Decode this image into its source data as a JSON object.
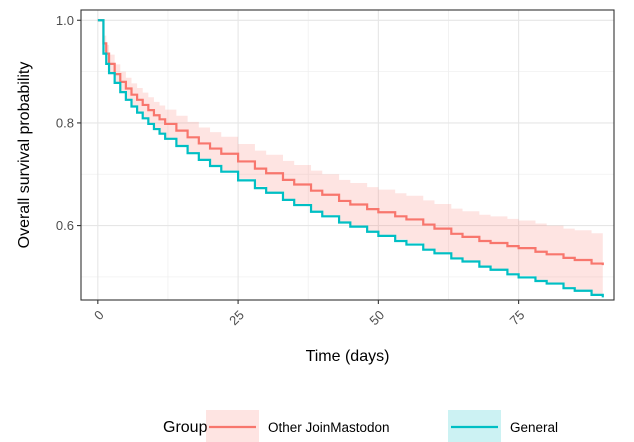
{
  "chart_data": {
    "type": "line",
    "subtype": "kaplan-meier step curve with confidence band",
    "xlabel": "Time (days)",
    "ylabel": "Overall survival probability",
    "xlim": [
      -3,
      92
    ],
    "ylim": [
      0.455,
      1.02
    ],
    "x_ticks": [
      0,
      25,
      50,
      75
    ],
    "x_tick_labels": [
      "0",
      "25",
      "50",
      "75"
    ],
    "y_ticks": [
      0.6,
      0.8,
      1.0
    ],
    "y_tick_labels": [
      "0.6",
      "0.8",
      "1.0"
    ],
    "grid": true,
    "legend": {
      "title": "Group",
      "position": "bottom"
    },
    "series": [
      {
        "name": "Other JoinMastodon",
        "color": "#F8766D",
        "band_color": "#F8766D",
        "x": [
          0,
          0.5,
          1,
          1.5,
          2,
          3,
          4,
          5,
          6,
          7,
          8,
          9,
          10,
          11,
          12,
          14,
          16,
          18,
          20,
          22,
          25,
          28,
          30,
          33,
          35,
          38,
          40,
          43,
          45,
          48,
          50,
          53,
          55,
          58,
          60,
          63,
          65,
          68,
          70,
          73,
          75,
          78,
          80,
          83,
          85,
          88,
          90
        ],
        "y": [
          1.0,
          1.0,
          0.955,
          0.935,
          0.915,
          0.895,
          0.88,
          0.867,
          0.855,
          0.845,
          0.835,
          0.825,
          0.815,
          0.807,
          0.798,
          0.785,
          0.772,
          0.76,
          0.75,
          0.74,
          0.725,
          0.711,
          0.702,
          0.689,
          0.68,
          0.668,
          0.66,
          0.648,
          0.641,
          0.632,
          0.626,
          0.618,
          0.612,
          0.602,
          0.594,
          0.584,
          0.578,
          0.57,
          0.566,
          0.56,
          0.556,
          0.549,
          0.544,
          0.537,
          0.533,
          0.526,
          0.523
        ],
        "lower": [
          1.0,
          1.0,
          0.94,
          0.918,
          0.897,
          0.876,
          0.86,
          0.846,
          0.833,
          0.822,
          0.811,
          0.8,
          0.789,
          0.78,
          0.77,
          0.756,
          0.742,
          0.729,
          0.718,
          0.707,
          0.691,
          0.676,
          0.666,
          0.652,
          0.642,
          0.629,
          0.62,
          0.607,
          0.599,
          0.589,
          0.582,
          0.573,
          0.566,
          0.555,
          0.546,
          0.535,
          0.528,
          0.519,
          0.514,
          0.507,
          0.502,
          0.494,
          0.488,
          0.48,
          0.475,
          0.467,
          0.463
        ],
        "upper": [
          1.0,
          1.0,
          0.97,
          0.952,
          0.933,
          0.914,
          0.9,
          0.888,
          0.877,
          0.868,
          0.859,
          0.85,
          0.841,
          0.834,
          0.826,
          0.814,
          0.802,
          0.791,
          0.782,
          0.773,
          0.759,
          0.746,
          0.738,
          0.726,
          0.718,
          0.707,
          0.7,
          0.689,
          0.683,
          0.675,
          0.67,
          0.663,
          0.658,
          0.649,
          0.642,
          0.633,
          0.628,
          0.621,
          0.618,
          0.613,
          0.61,
          0.604,
          0.6,
          0.594,
          0.591,
          0.585,
          0.583
        ]
      },
      {
        "name": "General",
        "color": "#00BFC4",
        "band_color": "#00BFC4",
        "x": [
          0,
          0.5,
          1,
          1.5,
          2,
          3,
          4,
          5,
          6,
          7,
          8,
          9,
          10,
          11,
          12,
          14,
          16,
          18,
          20,
          22,
          25,
          28,
          30,
          33,
          35,
          38,
          40,
          43,
          45,
          48,
          50,
          53,
          55,
          58,
          60,
          63,
          65,
          68,
          70,
          73,
          75,
          78,
          80,
          83,
          85,
          88,
          90
        ],
        "y": [
          1.0,
          1.0,
          0.935,
          0.915,
          0.897,
          0.878,
          0.86,
          0.845,
          0.832,
          0.82,
          0.809,
          0.798,
          0.788,
          0.779,
          0.769,
          0.755,
          0.741,
          0.728,
          0.716,
          0.705,
          0.688,
          0.673,
          0.664,
          0.65,
          0.64,
          0.627,
          0.618,
          0.606,
          0.598,
          0.588,
          0.58,
          0.57,
          0.563,
          0.553,
          0.546,
          0.536,
          0.53,
          0.52,
          0.514,
          0.505,
          0.499,
          0.492,
          0.487,
          0.478,
          0.473,
          0.465,
          0.46
        ],
        "lower": [
          1.0,
          1.0,
          0.933,
          0.913,
          0.895,
          0.876,
          0.858,
          0.843,
          0.83,
          0.818,
          0.807,
          0.796,
          0.786,
          0.777,
          0.767,
          0.753,
          0.739,
          0.726,
          0.714,
          0.703,
          0.686,
          0.671,
          0.662,
          0.648,
          0.638,
          0.625,
          0.616,
          0.604,
          0.596,
          0.586,
          0.578,
          0.568,
          0.561,
          0.551,
          0.544,
          0.534,
          0.528,
          0.518,
          0.512,
          0.503,
          0.497,
          0.49,
          0.485,
          0.476,
          0.471,
          0.463,
          0.458
        ],
        "upper": [
          1.0,
          1.0,
          0.937,
          0.917,
          0.899,
          0.88,
          0.862,
          0.847,
          0.834,
          0.822,
          0.811,
          0.8,
          0.79,
          0.781,
          0.771,
          0.757,
          0.743,
          0.73,
          0.718,
          0.707,
          0.69,
          0.675,
          0.666,
          0.652,
          0.642,
          0.629,
          0.62,
          0.608,
          0.6,
          0.59,
          0.582,
          0.572,
          0.565,
          0.555,
          0.548,
          0.538,
          0.532,
          0.522,
          0.516,
          0.507,
          0.501,
          0.494,
          0.489,
          0.48,
          0.475,
          0.467,
          0.462
        ]
      }
    ]
  }
}
